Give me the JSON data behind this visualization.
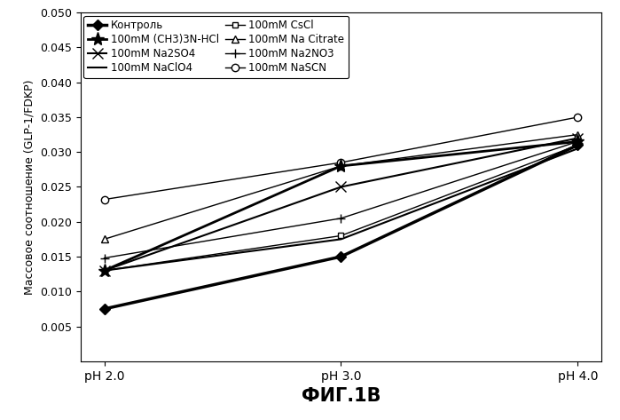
{
  "x_labels": [
    "pH 2.0",
    "pH 3.0",
    "pH 4.0"
  ],
  "x_positions": [
    0,
    1,
    2
  ],
  "series": [
    {
      "label": "Контроль",
      "values": [
        0.0075,
        0.015,
        0.031
      ],
      "color": "black",
      "linewidth": 2.5,
      "marker": "D",
      "markersize": 6,
      "markerfacecolor": "black",
      "linestyle": "-",
      "zorder": 5
    },
    {
      "label": "100mM (CH3)3N-HCl",
      "values": [
        0.013,
        0.028,
        0.0315
      ],
      "color": "black",
      "linewidth": 2.0,
      "marker": "*",
      "markersize": 11,
      "markerfacecolor": "black",
      "linestyle": "-",
      "zorder": 4
    },
    {
      "label": "100mM Na2SO4",
      "values": [
        0.013,
        0.025,
        0.032
      ],
      "color": "black",
      "linewidth": 1.5,
      "marker": "x",
      "markersize": 8,
      "markerfacecolor": "black",
      "linestyle": "-",
      "zorder": 3
    },
    {
      "label": "100mM NaClO4",
      "values": [
        0.013,
        0.0175,
        0.0305
      ],
      "color": "black",
      "linewidth": 1.5,
      "marker": "None",
      "markersize": 6,
      "markerfacecolor": "black",
      "linestyle": "-",
      "zorder": 2
    },
    {
      "label": "100mM CsCl",
      "values": [
        0.013,
        0.018,
        0.031
      ],
      "color": "black",
      "linewidth": 1.0,
      "marker": "s",
      "markersize": 5,
      "markerfacecolor": "white",
      "linestyle": "-",
      "zorder": 3
    },
    {
      "label": "100mM Na Citrate",
      "values": [
        0.0175,
        0.028,
        0.0325
      ],
      "color": "black",
      "linewidth": 1.0,
      "marker": "^",
      "markersize": 6,
      "markerfacecolor": "white",
      "linestyle": "-",
      "zorder": 3
    },
    {
      "label": "100mM Na2NO3",
      "values": [
        0.0148,
        0.0205,
        0.0315
      ],
      "color": "black",
      "linewidth": 1.0,
      "marker": "+",
      "markersize": 7,
      "markerfacecolor": "black",
      "linestyle": "-",
      "zorder": 3
    },
    {
      "label": "100mM NaSCN",
      "values": [
        0.0232,
        0.0285,
        0.035
      ],
      "color": "black",
      "linewidth": 1.0,
      "marker": "o",
      "markersize": 6,
      "markerfacecolor": "white",
      "linestyle": "-",
      "zorder": 3
    }
  ],
  "ylabel": "Массовое соотношение (GLP-1/FDKP)",
  "xlabel": "ФИГ.1В",
  "ylim": [
    0.0,
    0.05
  ],
  "yticks": [
    0.005,
    0.01,
    0.015,
    0.02,
    0.025,
    0.03,
    0.035,
    0.04,
    0.045,
    0.05
  ],
  "background_color": "white",
  "legend_fontsize": 8.5,
  "axis_fontsize": 10
}
